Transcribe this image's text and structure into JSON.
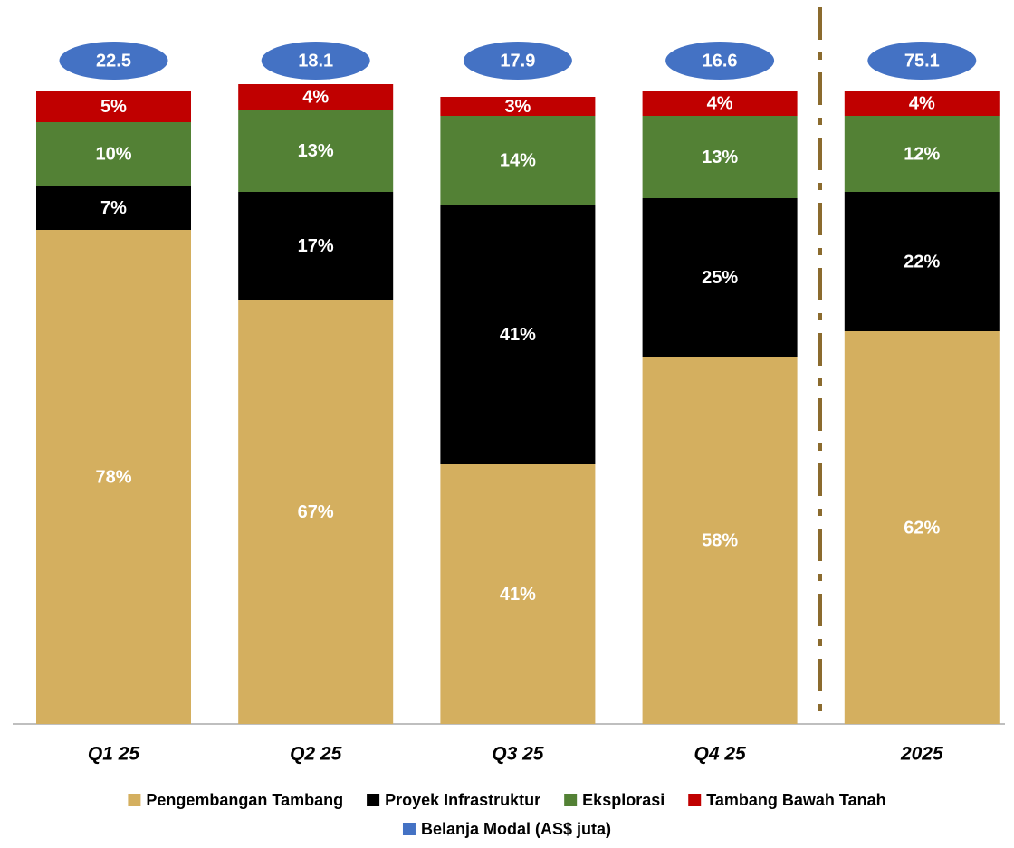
{
  "chart_data": {
    "type": "stacked-bar",
    "categories": [
      "Q1 25",
      "Q2 25",
      "Q3 25",
      "Q4 25",
      "2025"
    ],
    "ylim": [
      0,
      100
    ],
    "series": [
      {
        "name": "Pengembangan Tambang",
        "color": "#d4af5f",
        "values": [
          78,
          67,
          41,
          58,
          62
        ],
        "value_labels": [
          "78%",
          "67%",
          "41%",
          "58%",
          "62%"
        ]
      },
      {
        "name": "Proyek Infrastruktur",
        "color": "#000000",
        "values": [
          7,
          17,
          41,
          25,
          22
        ],
        "value_labels": [
          "7%",
          "17%",
          "41%",
          "25%",
          "22%"
        ]
      },
      {
        "name": "Eksplorasi",
        "color": "#538135",
        "values": [
          10,
          13,
          14,
          13,
          12
        ],
        "value_labels": [
          "10%",
          "13%",
          "14%",
          "13%",
          "12%"
        ]
      },
      {
        "name": "Tambang Bawah Tanah",
        "color": "#c00000",
        "values": [
          5,
          4,
          3,
          4,
          4
        ],
        "value_labels": [
          "5%",
          "4%",
          "3%",
          "4%",
          "4%"
        ]
      }
    ],
    "totals": {
      "name": "Belanja Modal (AS$ juta)",
      "color": "#4472c4",
      "values": [
        22.5,
        18.1,
        17.9,
        16.6,
        75.1
      ]
    }
  }
}
